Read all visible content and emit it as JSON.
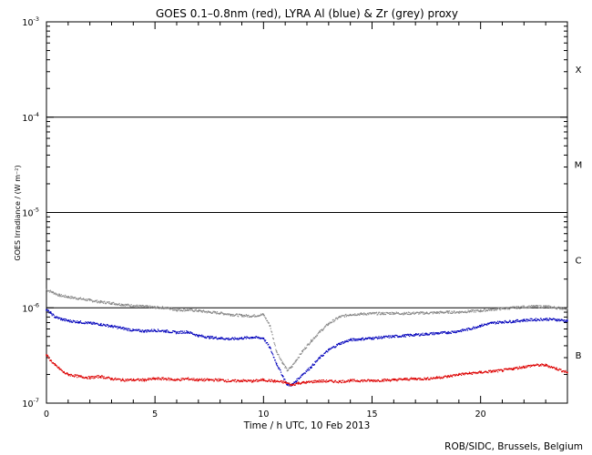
{
  "chart_data": {
    "type": "scatter",
    "title": "GOES 0.1–0.8nm (red), LYRA Al (blue) & Zr (grey) proxy",
    "xlabel": "Time / h UTC, 10 Feb 2013",
    "ylabel": "GOES Irradiance / (W m⁻²)",
    "yscale": "log",
    "xlim": [
      0,
      24
    ],
    "ylim": [
      1e-07,
      0.001
    ],
    "xticks": [
      0,
      5,
      10,
      15,
      20
    ],
    "xtick_labels": [
      "0",
      "5",
      "10",
      "15",
      "20"
    ],
    "yticks": [
      {
        "value": 1e-07,
        "base": "10",
        "exp": "-7"
      },
      {
        "value": 1e-06,
        "base": "10",
        "exp": "-6"
      },
      {
        "value": 1e-05,
        "base": "10",
        "exp": "-5"
      },
      {
        "value": 0.0001,
        "base": "10",
        "exp": "-4"
      },
      {
        "value": 0.001,
        "base": "10",
        "exp": "-3"
      }
    ],
    "flare_class_lines": [
      1e-06,
      1e-05,
      0.0001
    ],
    "flare_classes": [
      {
        "label": "X",
        "value": 0.00032
      },
      {
        "label": "M",
        "value": 3.2e-05
      },
      {
        "label": "C",
        "value": 3.2e-06
      },
      {
        "label": "B",
        "value": 3.2e-07
      }
    ],
    "grid": false,
    "series": [
      {
        "name": "Zr (grey) proxy",
        "color": "#888888",
        "x": [
          0.0,
          0.3,
          0.6,
          1.0,
          1.5,
          2.0,
          2.5,
          3.0,
          3.5,
          4.0,
          4.5,
          5.0,
          5.5,
          6.0,
          6.5,
          7.0,
          7.5,
          8.0,
          8.5,
          9.0,
          9.5,
          10.0,
          10.3,
          10.6,
          10.9,
          11.1,
          11.3,
          11.5,
          11.8,
          12.2,
          12.6,
          13.0,
          13.5,
          14.0,
          14.5,
          15.0,
          15.5,
          16.0,
          16.5,
          17.0,
          17.5,
          18.0,
          18.5,
          19.0,
          19.5,
          20.0,
          20.5,
          21.0,
          21.5,
          22.0,
          22.5,
          23.0,
          23.5,
          24.0
        ],
        "y": [
          1.55e-06,
          1.45e-06,
          1.35e-06,
          1.3e-06,
          1.25e-06,
          1.2e-06,
          1.15e-06,
          1.12e-06,
          1.08e-06,
          1.05e-06,
          1.03e-06,
          1.01e-06,
          1e-06,
          9.5e-07,
          9.5e-07,
          9.3e-07,
          9e-07,
          8.8e-07,
          8.5e-07,
          8.3e-07,
          8.2e-07,
          8.5e-07,
          6.5e-07,
          3.5e-07,
          2.6e-07,
          2.2e-07,
          2.4e-07,
          2.8e-07,
          3.5e-07,
          4.5e-07,
          5.6e-07,
          6.8e-07,
          8e-07,
          8.5e-07,
          8.6e-07,
          8.7e-07,
          8.7e-07,
          8.8e-07,
          8.7e-07,
          8.8e-07,
          8.8e-07,
          8.9e-07,
          9e-07,
          9e-07,
          9.2e-07,
          9.3e-07,
          9.6e-07,
          9.8e-07,
          1e-06,
          1.02e-06,
          1.03e-06,
          1.03e-06,
          1e-06,
          9.8e-07
        ]
      },
      {
        "name": "LYRA Al (blue)",
        "color": "#0000bb",
        "x": [
          0.0,
          0.2,
          0.4,
          0.7,
          1.0,
          1.5,
          2.0,
          2.5,
          3.0,
          3.5,
          4.0,
          4.5,
          5.0,
          5.5,
          6.0,
          6.5,
          7.0,
          7.5,
          8.0,
          8.5,
          9.0,
          9.5,
          10.0,
          10.3,
          10.6,
          10.9,
          11.1,
          11.3,
          11.5,
          11.8,
          12.2,
          12.6,
          13.0,
          13.5,
          14.0,
          14.5,
          15.0,
          15.5,
          16.0,
          16.5,
          17.0,
          17.5,
          18.0,
          18.5,
          19.0,
          19.5,
          20.0,
          20.5,
          21.0,
          21.5,
          22.0,
          22.5,
          23.0,
          23.5,
          24.0
        ],
        "y": [
          9.5e-07,
          8.8e-07,
          8e-07,
          7.6e-07,
          7.3e-07,
          7.1e-07,
          6.9e-07,
          6.7e-07,
          6.4e-07,
          6.1e-07,
          5.8e-07,
          5.7e-07,
          5.8e-07,
          5.7e-07,
          5.5e-07,
          5.6e-07,
          5.1e-07,
          4.9e-07,
          4.8e-07,
          4.7e-07,
          4.8e-07,
          4.9e-07,
          4.8e-07,
          3.8e-07,
          2.6e-07,
          1.9e-07,
          1.55e-07,
          1.55e-07,
          1.7e-07,
          2e-07,
          2.4e-07,
          3e-07,
          3.6e-07,
          4.2e-07,
          4.6e-07,
          4.7e-07,
          4.8e-07,
          4.9e-07,
          5e-07,
          5.1e-07,
          5.2e-07,
          5.3e-07,
          5.4e-07,
          5.5e-07,
          5.7e-07,
          6e-07,
          6.5e-07,
          6.9e-07,
          7.1e-07,
          7.2e-07,
          7.4e-07,
          7.5e-07,
          7.6e-07,
          7.5e-07,
          7.3e-07
        ]
      },
      {
        "name": "GOES 0.1–0.8nm (red)",
        "color": "#dd0000",
        "x": [
          0.0,
          0.2,
          0.4,
          0.6,
          0.8,
          1.0,
          1.5,
          2.0,
          2.5,
          3.0,
          3.5,
          4.0,
          4.5,
          5.0,
          5.5,
          6.0,
          6.5,
          7.0,
          7.5,
          8.0,
          8.5,
          9.0,
          9.5,
          10.0,
          10.5,
          11.0,
          11.3,
          11.6,
          12.0,
          12.5,
          13.0,
          13.5,
          14.0,
          14.5,
          15.0,
          15.5,
          16.0,
          16.5,
          17.0,
          17.5,
          18.0,
          18.5,
          19.0,
          19.5,
          20.0,
          20.5,
          21.0,
          21.5,
          22.0,
          22.5,
          23.0,
          23.5,
          24.0
        ],
        "y": [
          3.2e-07,
          2.8e-07,
          2.5e-07,
          2.3e-07,
          2.1e-07,
          2e-07,
          1.9e-07,
          1.85e-07,
          1.9e-07,
          1.8e-07,
          1.75e-07,
          1.75e-07,
          1.75e-07,
          1.8e-07,
          1.8e-07,
          1.75e-07,
          1.8e-07,
          1.75e-07,
          1.75e-07,
          1.75e-07,
          1.7e-07,
          1.72e-07,
          1.7e-07,
          1.75e-07,
          1.7e-07,
          1.65e-07,
          1.55e-07,
          1.62e-07,
          1.65e-07,
          1.7e-07,
          1.7e-07,
          1.68e-07,
          1.72e-07,
          1.72e-07,
          1.72e-07,
          1.74e-07,
          1.75e-07,
          1.78e-07,
          1.8e-07,
          1.8e-07,
          1.85e-07,
          1.9e-07,
          2e-07,
          2.05e-07,
          2.1e-07,
          2.15e-07,
          2.2e-07,
          2.3e-07,
          2.4e-07,
          2.5e-07,
          2.5e-07,
          2.3e-07,
          2.1e-07
        ]
      }
    ]
  },
  "credit": "ROB/SIDC, Brussels, Belgium"
}
